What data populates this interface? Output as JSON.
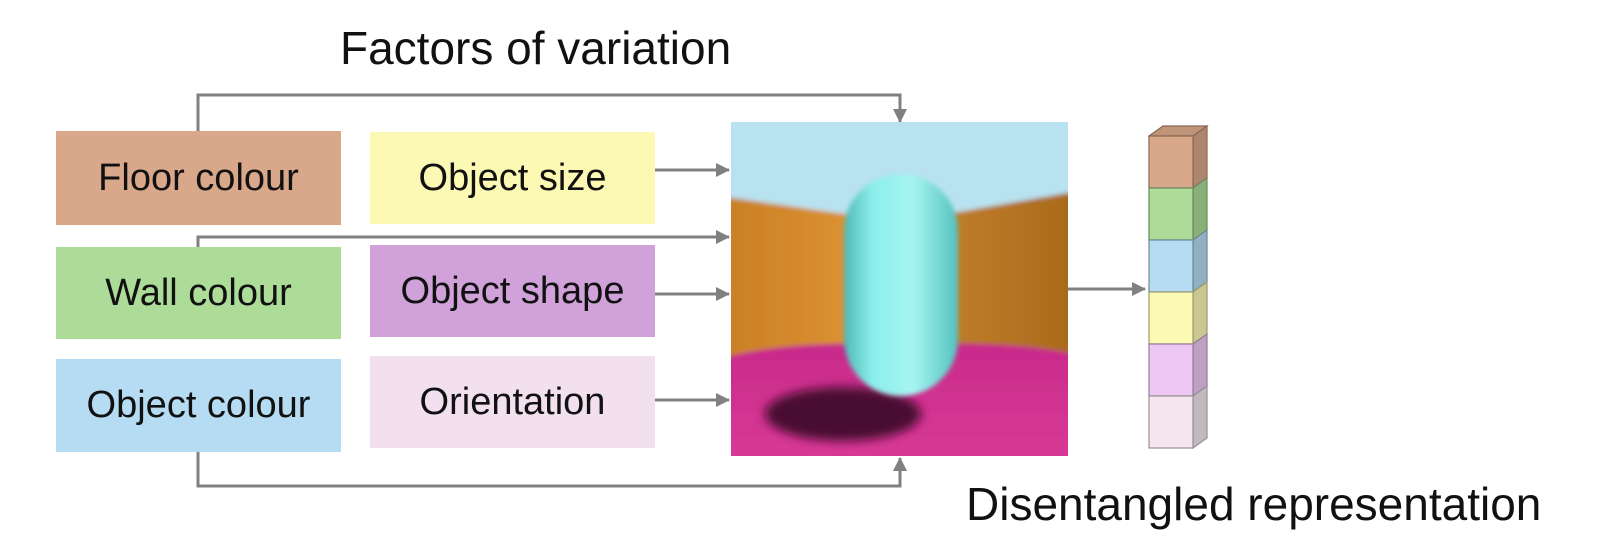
{
  "diagram": {
    "title": "Factors of variation",
    "caption": "Disentangled representation",
    "factors": [
      {
        "id": "floor",
        "label": "Floor colour",
        "color": "#d9a88a"
      },
      {
        "id": "wall",
        "label": "Wall colour",
        "color": "#acdc97"
      },
      {
        "id": "objcolour",
        "label": "Object colour",
        "color": "#b5dcf2"
      },
      {
        "id": "size",
        "label": "Object size",
        "color": "#fcf9b5"
      },
      {
        "id": "shape",
        "label": "Object shape",
        "color": "#d1a2d9"
      },
      {
        "id": "orientation",
        "label": "Orientation",
        "color": "#f3e0ee"
      }
    ],
    "scene": {
      "sky_color": "#b8e2f0",
      "wall_color": "#d0892c",
      "floor_color": "#cf2f8d",
      "object_color": "#8ceeea",
      "shadow_color": "#4a0a33"
    },
    "representation": {
      "segments": [
        {
          "factor": "floor",
          "color": "#d9a88a"
        },
        {
          "factor": "wall",
          "color": "#acdc97"
        },
        {
          "factor": "objcolour",
          "color": "#b5dcf2"
        },
        {
          "factor": "size",
          "color": "#fcf9b5"
        },
        {
          "factor": "shape",
          "color": "#eec8f4"
        },
        {
          "factor": "orientation",
          "color": "#f5e6ef"
        }
      ]
    },
    "connector_color": "#808080"
  }
}
